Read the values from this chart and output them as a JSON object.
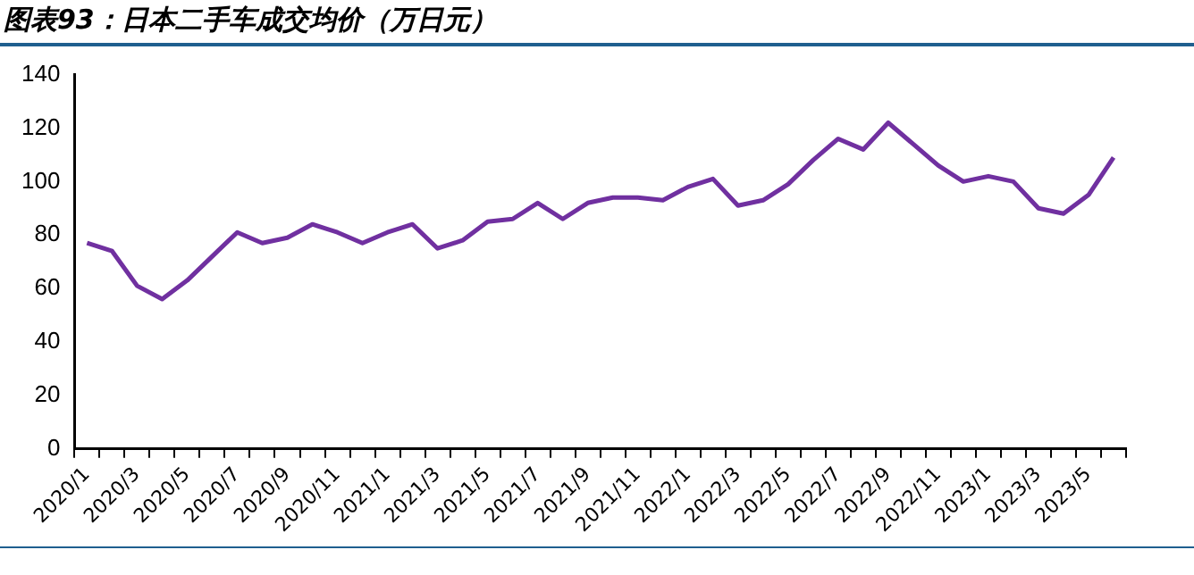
{
  "chart_data": {
    "type": "line",
    "title": "图表93：日本二手车成交均价（万日元）",
    "categories": [
      "2020/1",
      null,
      "2020/3",
      null,
      "2020/5",
      null,
      "2020/7",
      null,
      "2020/9",
      null,
      "2020/11",
      null,
      "2021/1",
      null,
      "2021/3",
      null,
      "2021/5",
      null,
      "2021/7",
      null,
      "2021/9",
      null,
      "2021/11",
      null,
      "2022/1",
      null,
      "2022/3",
      null,
      "2022/5",
      null,
      "2022/7",
      null,
      "2022/9",
      null,
      "2022/11",
      null,
      "2023/1",
      null,
      "2023/3",
      null,
      "2023/5",
      null
    ],
    "series": [
      {
        "color": "#7030a0",
        "values": [
          77,
          74,
          61,
          56,
          63,
          72,
          81,
          77,
          79,
          84,
          81,
          77,
          81,
          84,
          75,
          78,
          85,
          86,
          92,
          86,
          92,
          94,
          94,
          93,
          98,
          101,
          91,
          93,
          99,
          108,
          116,
          112,
          122,
          114,
          106,
          100,
          102,
          100,
          90,
          88,
          95,
          109
        ]
      }
    ],
    "ylim": [
      0,
      140
    ],
    "yticks": [
      0,
      20,
      40,
      60,
      80,
      100,
      120,
      140
    ],
    "grid": false,
    "legend": false,
    "marker": "none",
    "line_style": "solid"
  }
}
